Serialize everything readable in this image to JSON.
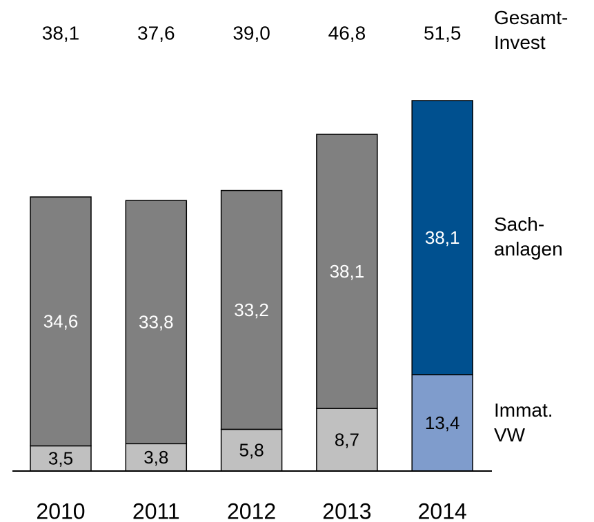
{
  "chart_data": {
    "type": "stacked_bar",
    "categories": [
      "2010",
      "2011",
      "2012",
      "2013",
      "2014"
    ],
    "series": [
      {
        "name": "Immat.\nVW",
        "values": [
          3.5,
          3.8,
          5.8,
          8.7,
          13.4
        ],
        "value_labels": [
          "3,5",
          "3,8",
          "5,8",
          "8,7",
          "13,4"
        ],
        "colors": [
          "#c0c0c0",
          "#c0c0c0",
          "#c0c0c0",
          "#c0c0c0",
          "#7f9ccc"
        ],
        "label_colors": [
          "#000000",
          "#000000",
          "#000000",
          "#000000",
          "#000000"
        ]
      },
      {
        "name": "Sach-\nanlagen",
        "values": [
          34.6,
          33.8,
          33.2,
          38.1,
          38.1
        ],
        "value_labels": [
          "34,6",
          "33,8",
          "33,2",
          "38,1",
          "38,1"
        ],
        "colors": [
          "#808080",
          "#808080",
          "#808080",
          "#808080",
          "#00508f"
        ],
        "label_colors": [
          "#ffffff",
          "#ffffff",
          "#ffffff",
          "#ffffff",
          "#ffffff"
        ]
      }
    ],
    "totals": {
      "name": "Gesamt-\nInvest",
      "values": [
        38.1,
        37.6,
        39.0,
        46.8,
        51.5
      ],
      "value_labels": [
        "38,1",
        "37,6",
        "39,0",
        "46,8",
        "51,5"
      ]
    }
  }
}
